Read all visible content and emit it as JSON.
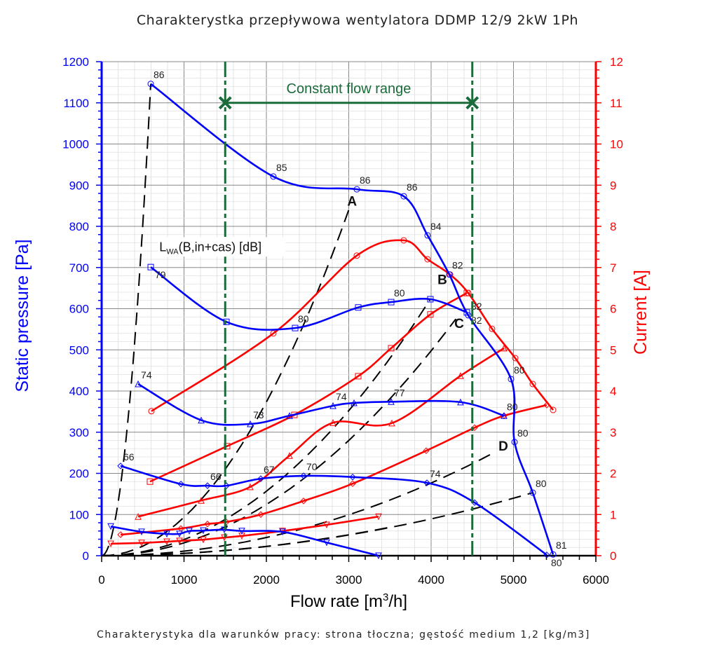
{
  "title": "Charakterystka przepływowa wentylatora DDMP 12/9 2kW 1Ph",
  "footer": "Charakterystyka dla warunków pracy: strona tłoczna; gęstość medium 1,2 [kg/m3]",
  "chart_data": {
    "type": "line",
    "xlabel": "Flow rate [m³/h]",
    "ylabel": "Static pressure [Pa]",
    "y2label": "Current [A]",
    "xlim": [
      0,
      6000
    ],
    "ylim": [
      0,
      1200
    ],
    "y2lim": [
      0,
      12
    ],
    "xticks": [
      0,
      1000,
      2000,
      3000,
      4000,
      5000,
      6000
    ],
    "yticks": [
      0,
      100,
      200,
      300,
      400,
      500,
      600,
      700,
      800,
      900,
      1000,
      1100,
      1200
    ],
    "y2ticks": [
      0,
      1,
      2,
      3,
      4,
      5,
      6,
      7,
      8,
      9,
      10,
      11,
      12
    ],
    "grid": true,
    "colors": {
      "pressure": "#0000ff",
      "current": "#ff0000",
      "system": "#000000",
      "range": "#1a6b3a"
    },
    "sound_label": {
      "main": "L",
      "sub": "WA",
      "rest": "(B,in+cas) [dB]",
      "x": 700,
      "y": 740
    },
    "pressure_series": [
      {
        "marker": "circle",
        "x": [
          596,
          2085,
          3098,
          3668,
          3957,
          4221,
          4451,
          4970,
          5013,
          5234,
          5481
        ],
        "y": [
          1146,
          921,
          890,
          873,
          778,
          683,
          584,
          429,
          276,
          153,
          3
        ],
        "labels": [
          "86",
          "85",
          "86",
          "86",
          "84",
          "82",
          "82",
          "80",
          "80",
          "80",
          "81"
        ]
      },
      {
        "marker": "square",
        "x": [
          596,
          1515,
          2349,
          3115,
          3515,
          3991,
          4434
        ],
        "y": [
          701,
          568,
          553,
          603,
          616,
          623,
          591
        ],
        "labels": [
          "79",
          "",
          "80",
          "",
          "80",
          "",
          "82"
        ]
      },
      {
        "marker": "triangle-up",
        "x": [
          443,
          1209,
          1804,
          2281,
          2809,
          3064,
          3515,
          4357,
          4885
        ],
        "y": [
          417,
          329,
          320,
          340,
          364,
          371,
          374,
          373,
          340
        ],
        "labels": [
          "74",
          "",
          "73",
          "",
          "74",
          "",
          "77",
          "",
          "80"
        ]
      },
      {
        "marker": "diamond",
        "x": [
          230,
          962,
          1285,
          1515,
          1932,
          2451,
          3047,
          3949,
          4528,
          5404
        ],
        "y": [
          218,
          174,
          170,
          170,
          187,
          194,
          191,
          177,
          129,
          2
        ],
        "labels": [
          "66",
          "",
          "66",
          "",
          "67",
          "70",
          "",
          "74",
          "",
          "80"
        ]
      },
      {
        "marker": "triangle-down",
        "x": [
          111,
          485,
          791,
          945,
          1064,
          1234,
          1489,
          1702,
          2196,
          2732,
          3362
        ],
        "y": [
          71,
          58,
          53,
          53,
          60,
          61,
          63,
          60,
          58,
          32,
          0
        ],
        "labels": [
          "",
          "",
          "",
          "",
          "",
          "",
          "",
          "",
          "",
          "",
          ""
        ]
      }
    ],
    "current_series": [
      {
        "marker": "circle",
        "x": [
          604,
          2085,
          3098,
          3668,
          3957,
          4230,
          4451,
          4740,
          5021,
          5234,
          5481
        ],
        "y": [
          3.51,
          5.4,
          7.29,
          7.66,
          7.2,
          6.83,
          6.38,
          5.51,
          4.8,
          4.17,
          3.54
        ]
      },
      {
        "marker": "square",
        "x": [
          587,
          1523,
          2340,
          3115,
          3515,
          3991,
          4434
        ],
        "y": [
          1.8,
          2.66,
          3.42,
          4.36,
          5.04,
          5.86,
          6.38
        ]
      },
      {
        "marker": "triangle-up",
        "x": [
          443,
          1209,
          1804,
          2281,
          2809,
          3523,
          4357,
          4885
        ],
        "y": [
          0.95,
          1.34,
          1.67,
          2.43,
          3.23,
          3.22,
          4.37,
          5.04
        ]
      },
      {
        "marker": "diamond",
        "x": [
          230,
          962,
          1285,
          1515,
          1932,
          2451,
          3047,
          3940,
          4528,
          4885,
          5404
        ],
        "y": [
          0.51,
          0.66,
          0.77,
          0.82,
          1.0,
          1.33,
          1.75,
          2.55,
          3.11,
          3.4,
          3.66
        ]
      },
      {
        "marker": "triangle-down",
        "x": [
          111,
          485,
          791,
          945,
          1234,
          1489,
          1702,
          2196,
          2732,
          3362
        ],
        "y": [
          0.29,
          0.31,
          0.34,
          0.36,
          0.39,
          0.44,
          0.48,
          0.6,
          0.75,
          0.95
        ]
      }
    ],
    "system_curves": [
      {
        "end_x": 596,
        "end_y": 1146
      },
      {
        "end_x": 3000,
        "end_y": 840,
        "label": "A"
      },
      {
        "end_x": 3990,
        "end_y": 623,
        "label": "B"
      },
      {
        "end_x": 4300,
        "end_y": 575,
        "label": "C"
      },
      {
        "end_x": 4760,
        "end_y": 250,
        "label": "D"
      },
      {
        "end_x": 5234,
        "end_y": 153
      },
      {
        "end_x": 3470,
        "end_y": 68
      }
    ],
    "system_labels": [
      {
        "text": "A",
        "x": 3040,
        "y": 850
      },
      {
        "text": "B",
        "x": 4136,
        "y": 660
      },
      {
        "text": "C",
        "x": 4340,
        "y": 553
      },
      {
        "text": "D",
        "x": 4877,
        "y": 255
      }
    ],
    "constant_flow_range": {
      "label": "Constant flow range",
      "from": 1500,
      "to": 4500,
      "marker_pressure": 1100
    }
  }
}
